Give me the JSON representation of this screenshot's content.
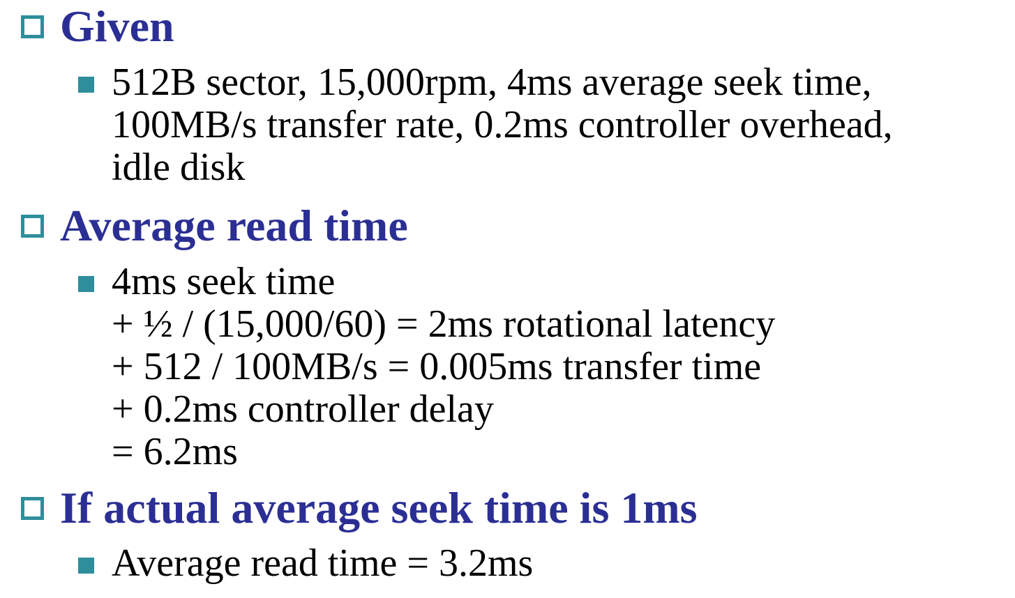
{
  "colors": {
    "heading": "#2b2f94",
    "bullet_accent": "#2f8e9c",
    "body_text": "#000000",
    "background": "#ffffff"
  },
  "sections": [
    {
      "heading": "Given",
      "items": [
        {
          "lines": [
            "512B sector, 15,000rpm, 4ms average seek time,",
            "100MB/s transfer rate, 0.2ms controller overhead,",
            "idle disk"
          ]
        }
      ]
    },
    {
      "heading": "Average read time",
      "items": [
        {
          "lines": [
            "4ms seek time",
            "+ ½ / (15,000/60) = 2ms rotational latency",
            "+ 512 / 100MB/s = 0.005ms transfer time",
            "+ 0.2ms controller delay",
            "= 6.2ms"
          ]
        }
      ]
    },
    {
      "heading": "If actual average seek time is 1ms",
      "items": [
        {
          "lines": [
            "Average read time = 3.2ms"
          ]
        }
      ]
    }
  ]
}
